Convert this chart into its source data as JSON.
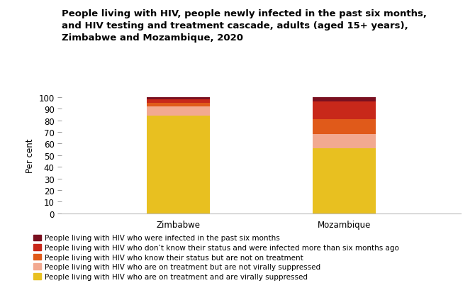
{
  "title": "People living with HIV, people newly infected in the past six months,\nand HIV testing and treatment cascade, adults (aged 15+ years),\nZimbabwe and Mozambique, 2020",
  "categories": [
    "Zimbabwe",
    "Mozambique"
  ],
  "segments": [
    {
      "label": "People living with HIV who are on treatment and are virally suppressed",
      "color": "#E8C020",
      "values": [
        84,
        56
      ]
    },
    {
      "label": "People living with HIV who are on treatment but are not virally suppressed",
      "color": "#F2A990",
      "values": [
        8,
        12
      ]
    },
    {
      "label": "People living with HIV who know their status but are not on treatment",
      "color": "#E05A1A",
      "values": [
        3,
        13
      ]
    },
    {
      "label": "People living with HIV who don’t know their status and were infected more than six months ago",
      "color": "#C8281A",
      "values": [
        3,
        15
      ]
    },
    {
      "label": "People living with HIV who were infected in the past six months",
      "color": "#7A1020",
      "values": [
        2,
        4
      ]
    }
  ],
  "ylabel": "Per cent",
  "ylim": [
    0,
    100
  ],
  "yticks": [
    0,
    10,
    20,
    30,
    40,
    50,
    60,
    70,
    80,
    90,
    100
  ],
  "background_color": "#FFFFFF",
  "title_fontsize": 9.5,
  "legend_fontsize": 7.5,
  "axis_fontsize": 8.5,
  "bar_width": 0.38
}
